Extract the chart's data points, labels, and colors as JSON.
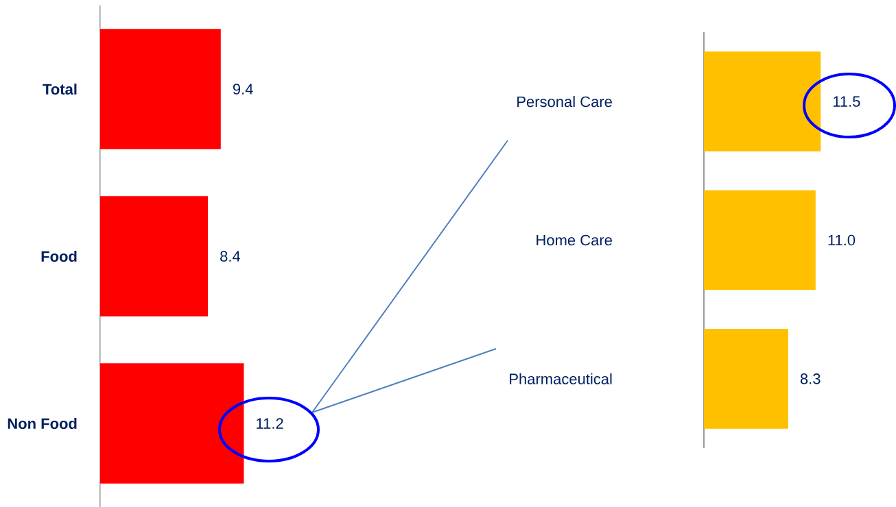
{
  "chart_data": [
    {
      "type": "bar",
      "orientation": "horizontal",
      "categories": [
        "Total",
        "Food",
        "Non Food"
      ],
      "values": [
        9.4,
        8.4,
        11.2
      ],
      "value_labels": [
        "9.4",
        "8.4",
        "11.2"
      ],
      "color": "#ff0000",
      "tick_labels": "y"
    },
    {
      "type": "bar",
      "orientation": "horizontal",
      "categories": [
        "Personal Care",
        "Home Care",
        "Pharmaceutical"
      ],
      "values": [
        11.5,
        11.0,
        8.3
      ],
      "value_labels": [
        "11.5",
        "11.0",
        "8.3"
      ],
      "color": "#ffc000",
      "tick_labels": "y"
    }
  ]
}
